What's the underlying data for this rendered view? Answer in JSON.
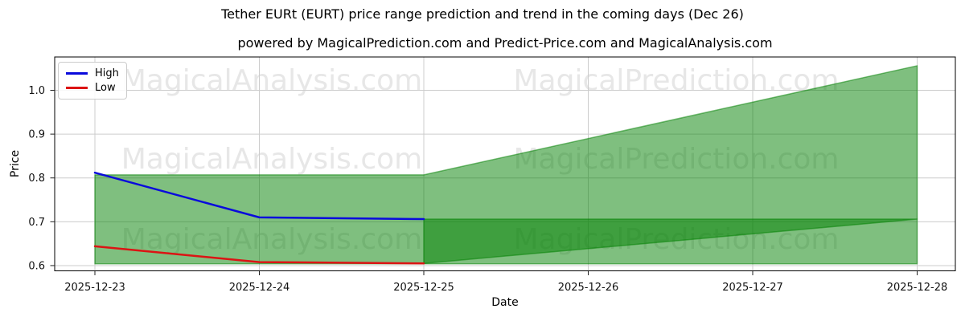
{
  "figure": {
    "title": "Tether EURt (EURT) price range prediction and trend in the coming days (Dec 26)",
    "subtitle": "powered by MagicalPrediction.com and Predict-Price.com and MagicalAnalysis.com"
  },
  "watermarks": {
    "left_text": "MagicalAnalysis.com",
    "right_text": "MagicalPrediction.com",
    "color": "#e7e7e7"
  },
  "chart_data": {
    "type": "line",
    "title": "Tether EURt (EURT) price range prediction and trend in the coming days (Dec 26)",
    "xlabel": "Date",
    "ylabel": "Price",
    "categories": [
      "2025-12-23",
      "2025-12-24",
      "2025-12-25",
      "2025-12-26",
      "2025-12-27",
      "2025-12-28"
    ],
    "ytick_labels": [
      "0.6",
      "0.7",
      "0.8",
      "0.9",
      "1.0"
    ],
    "yticks": [
      0.6,
      0.7,
      0.8,
      0.9,
      1.0
    ],
    "ylim": [
      0.588,
      1.076
    ],
    "grid": true,
    "grid_color": "#cccccc",
    "legend_position": "upper left",
    "series": [
      {
        "name": "High",
        "color": "#0a0adc",
        "x": [
          "2025-12-23",
          "2025-12-24",
          "2025-12-25"
        ],
        "values": [
          0.812,
          0.71,
          0.706
        ]
      },
      {
        "name": "Low",
        "color": "#dc1414",
        "x": [
          "2025-12-23",
          "2025-12-24",
          "2025-12-25"
        ],
        "values": [
          0.644,
          0.608,
          0.605
        ]
      }
    ],
    "bands": [
      {
        "name": "prediction-range-band",
        "fill": "rgba(0,128,0,0.5)",
        "top": [
          [
            "2025-12-23",
            0.807
          ],
          [
            "2025-12-25",
            0.807
          ],
          [
            "2025-12-28",
            1.056
          ]
        ],
        "bottom": [
          [
            "2025-12-23",
            0.604
          ],
          [
            "2025-12-28",
            0.604
          ]
        ]
      },
      {
        "name": "trend-wedge-band",
        "fill": "rgba(0,128,0,0.5)",
        "top": [
          [
            "2025-12-25",
            0.706
          ],
          [
            "2025-12-28",
            0.706
          ]
        ],
        "bottom": [
          [
            "2025-12-25",
            0.605
          ],
          [
            "2025-12-28",
            0.706
          ]
        ]
      }
    ]
  }
}
